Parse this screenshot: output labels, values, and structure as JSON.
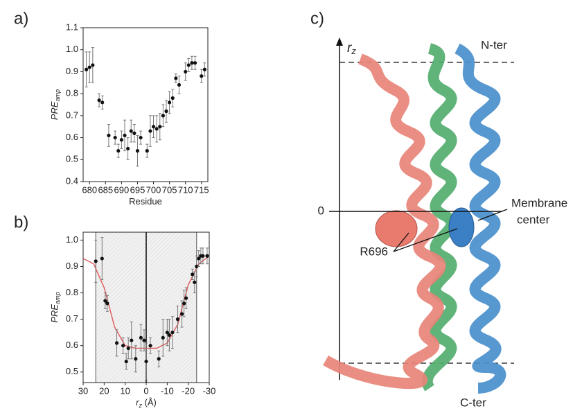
{
  "chart_data": [
    {
      "type": "scatter",
      "panel": "a)",
      "x_label": "Residue",
      "y_label": "PRE",
      "y_label_sub": "amp",
      "xlim": [
        678,
        717
      ],
      "xticks": [
        680,
        685,
        690,
        695,
        700,
        705,
        710,
        715
      ],
      "ylim": [
        0.4,
        1.1
      ],
      "yticks": [
        0.4,
        0.5,
        0.6,
        0.7,
        0.8,
        0.9,
        {
          "value": 1,
          "label": "1.0"
        },
        1.1
      ],
      "series": [
        {
          "color": "#111111",
          "x": [
            679,
            680,
            681,
            683,
            684,
            686,
            688,
            689,
            690,
            691,
            692,
            693,
            694,
            695,
            696,
            698,
            699,
            700,
            701,
            702,
            703,
            704,
            705,
            706,
            707,
            708,
            710,
            711,
            712,
            713,
            715,
            716
          ],
          "values": [
            0.91,
            0.92,
            0.93,
            0.77,
            0.76,
            0.61,
            0.6,
            0.54,
            0.59,
            0.61,
            0.55,
            0.63,
            0.62,
            0.54,
            0.6,
            0.54,
            0.63,
            0.65,
            0.64,
            0.65,
            0.7,
            0.72,
            0.76,
            0.78,
            0.87,
            0.84,
            0.9,
            0.93,
            0.94,
            0.94,
            0.88,
            0.91
          ],
          "errors": [
            0.08,
            0.07,
            0.08,
            0.03,
            0.03,
            0.05,
            0.03,
            0.03,
            0.04,
            0.07,
            0.05,
            0.05,
            0.04,
            0.07,
            0.03,
            0.03,
            0.07,
            0.05,
            0.06,
            0.06,
            0.05,
            0.05,
            0.05,
            0.04,
            0.02,
            0.04,
            0.04,
            0.03,
            0.03,
            0.03,
            0.03,
            0.03
          ]
        }
      ]
    },
    {
      "type": "scatter",
      "panel": "b)",
      "x_label": "r",
      "x_label_sub": "z",
      "x_label_unit": " (Å)",
      "y_label": "PRE",
      "y_label_sub": "amp",
      "xlim": [
        30,
        -30
      ],
      "xticks": [
        30,
        20,
        10,
        0,
        -10,
        -20,
        -30
      ],
      "ylim": [
        0.46,
        1.03
      ],
      "yticks": [
        0.5,
        0.6,
        0.7,
        0.8,
        0.9,
        {
          "value": 1,
          "label": "1.0"
        }
      ],
      "shade": [
        24,
        -24
      ],
      "vline": 0,
      "series": [
        {
          "color": "#111111",
          "x": [
            24,
            21,
            19.5,
            18.5,
            14,
            11,
            9.5,
            8.5,
            7,
            5,
            2.5,
            1,
            0,
            -2,
            -6,
            -8,
            -10,
            -11,
            -12.5,
            -15,
            -17,
            -18,
            -19,
            -22,
            -23,
            -24,
            -25,
            -26,
            -27,
            -29
          ],
          "values": [
            0.92,
            0.93,
            0.77,
            0.76,
            0.61,
            0.6,
            0.54,
            0.59,
            0.62,
            0.55,
            0.63,
            0.62,
            0.54,
            0.6,
            0.55,
            0.63,
            0.65,
            0.64,
            0.65,
            0.7,
            0.72,
            0.76,
            0.78,
            0.87,
            0.84,
            0.9,
            0.93,
            0.94,
            0.94,
            0.94
          ],
          "errors": [
            0.08,
            0.08,
            0.03,
            0.03,
            0.05,
            0.03,
            0.03,
            0.04,
            0.07,
            0.05,
            0.05,
            0.04,
            0.07,
            0.03,
            0.03,
            0.07,
            0.05,
            0.06,
            0.06,
            0.05,
            0.05,
            0.05,
            0.04,
            0.02,
            0.04,
            0.04,
            0.03,
            0.03,
            0.03,
            0.03
          ]
        }
      ],
      "fit": {
        "color": "#e06060",
        "x": [
          30,
          25,
          20,
          15,
          10,
          5,
          0,
          -5,
          -10,
          -15,
          -20,
          -25,
          -30
        ],
        "values": [
          0.93,
          0.91,
          0.82,
          0.67,
          0.6,
          0.59,
          0.59,
          0.59,
          0.61,
          0.68,
          0.83,
          0.91,
          0.94
        ]
      }
    }
  ],
  "diagram": {
    "panel": "c)",
    "axis": "r",
    "axis_sub": "z",
    "top": "N-ter",
    "zero": "0",
    "center_1": "Membrane",
    "center_2": "center",
    "residue": "R696",
    "bottom": "C-ter"
  }
}
